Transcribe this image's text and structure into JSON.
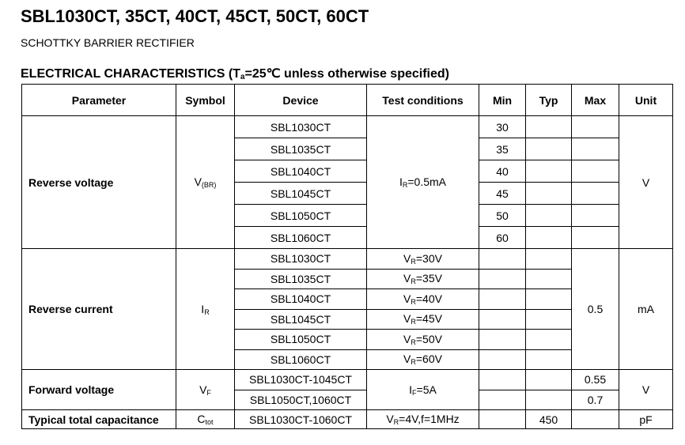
{
  "title": "SBL1030CT, 35CT, 40CT, 45CT, 50CT, 60CT",
  "subtitle": "SCHOTTKY BARRIER RECTIFIER",
  "section": {
    "prefix": "ELECTRICAL CHARACTERISTICS (T",
    "sub": "a",
    "suffix": "=25℃ unless otherwise specified)"
  },
  "headers": [
    "Parameter",
    "Symbol",
    "Device",
    "Test conditions",
    "Min",
    "Typ",
    "Max",
    "Unit"
  ],
  "reverse_voltage": {
    "parameter": "Reverse voltage",
    "symbol": "V",
    "symbol_sub": "(BR)",
    "cond": "I",
    "cond_sub": "R",
    "cond_rest": "=0.5mA",
    "unit": "V",
    "devices": [
      "SBL1030CT",
      "SBL1035CT",
      "SBL1040CT",
      "SBL1045CT",
      "SBL1050CT",
      "SBL1060CT"
    ],
    "min": [
      "30",
      "35",
      "40",
      "45",
      "50",
      "60"
    ]
  },
  "reverse_current": {
    "parameter": "Reverse current",
    "symbol": "I",
    "symbol_sub": "R",
    "max": "0.5",
    "unit": "mA",
    "devices": [
      "SBL1030CT",
      "SBL1035CT",
      "SBL1040CT",
      "SBL1045CT",
      "SBL1050CT",
      "SBL1060CT"
    ],
    "cond_prefix": "V",
    "cond_sub": "R",
    "conds": [
      "=30V",
      "=35V",
      "=40V",
      "=45V",
      "=50V",
      "=60V"
    ]
  },
  "forward_voltage": {
    "parameter": "Forward voltage",
    "symbol": "V",
    "symbol_sub": "F",
    "cond": "I",
    "cond_sub": "F",
    "cond_rest": "=5A",
    "unit": "V",
    "devices": [
      "SBL1030CT-1045CT",
      "SBL1050CT,1060CT"
    ],
    "max": [
      "0.55",
      "0.7"
    ]
  },
  "capacitance": {
    "parameter": "Typical total capacitance",
    "symbol": "C",
    "symbol_sub": "tot",
    "device": "SBL1030CT-1060CT",
    "cond": "V",
    "cond_sub": "R",
    "cond_rest": "=4V,f=1MHz",
    "typ": "450",
    "unit": "pF"
  }
}
